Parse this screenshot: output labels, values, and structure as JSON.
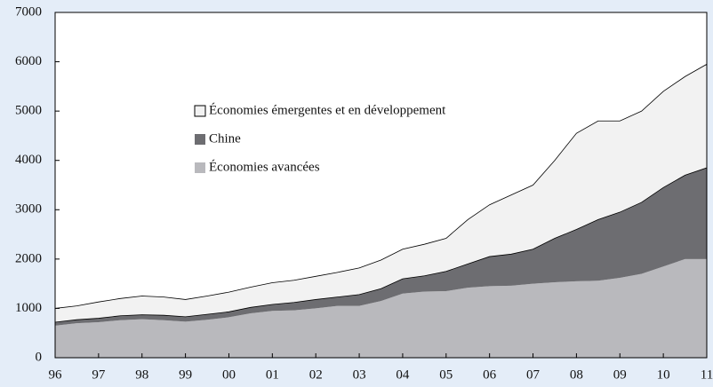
{
  "chart_data": {
    "type": "stacked-area",
    "x": [
      1996,
      1996.5,
      1997,
      1997.5,
      1998,
      1998.5,
      1999,
      1999.5,
      2000,
      2000.5,
      2001,
      2001.5,
      2002,
      2002.5,
      2003,
      2003.5,
      2004,
      2004.5,
      2005,
      2005.5,
      2006,
      2006.5,
      2007,
      2007.5,
      2008,
      2008.5,
      2009,
      2009.5,
      2010,
      2010.5,
      2011
    ],
    "series": [
      {
        "name": "Économies avancées",
        "color": "#b9b9bd",
        "values": [
          650,
          700,
          720,
          760,
          780,
          760,
          730,
          770,
          820,
          900,
          950,
          960,
          1000,
          1050,
          1050,
          1150,
          1300,
          1340,
          1350,
          1420,
          1450,
          1460,
          1500,
          1530,
          1550,
          1560,
          1620,
          1700,
          1850,
          2000,
          2000
        ]
      },
      {
        "name": "Chine",
        "color": "#6d6d71",
        "values": [
          70,
          70,
          80,
          90,
          90,
          100,
          100,
          110,
          110,
          120,
          130,
          160,
          180,
          180,
          230,
          250,
          300,
          320,
          400,
          480,
          600,
          640,
          700,
          890,
          1050,
          1240,
          1330,
          1450,
          1600,
          1700,
          1850
        ]
      },
      {
        "name": "Économies émergentes et en développement",
        "color": "#f2f2f2",
        "values": [
          280,
          280,
          330,
          350,
          380,
          370,
          350,
          370,
          400,
          410,
          440,
          450,
          470,
          500,
          540,
          580,
          600,
          640,
          670,
          900,
          1050,
          1200,
          1300,
          1580,
          1950,
          2000,
          1850,
          1850,
          1950,
          2000,
          2100
        ]
      }
    ],
    "xlim": [
      1996,
      2011
    ],
    "xticks": [
      {
        "value": 1996,
        "label": "96"
      },
      {
        "value": 1997,
        "label": "97"
      },
      {
        "value": 1998,
        "label": "98"
      },
      {
        "value": 1999,
        "label": "99"
      },
      {
        "value": 2000,
        "label": "00"
      },
      {
        "value": 2001,
        "label": "01"
      },
      {
        "value": 2002,
        "label": "02"
      },
      {
        "value": 2003,
        "label": "03"
      },
      {
        "value": 2004,
        "label": "04"
      },
      {
        "value": 2005,
        "label": "05"
      },
      {
        "value": 2006,
        "label": "06"
      },
      {
        "value": 2007,
        "label": "07"
      },
      {
        "value": 2008,
        "label": "08"
      },
      {
        "value": 2009,
        "label": "09"
      },
      {
        "value": 2010,
        "label": "10"
      },
      {
        "value": 2011,
        "label": "11"
      }
    ],
    "ylim": [
      0,
      7000
    ],
    "yticks": [
      0,
      1000,
      2000,
      3000,
      4000,
      5000,
      6000,
      7000
    ]
  }
}
